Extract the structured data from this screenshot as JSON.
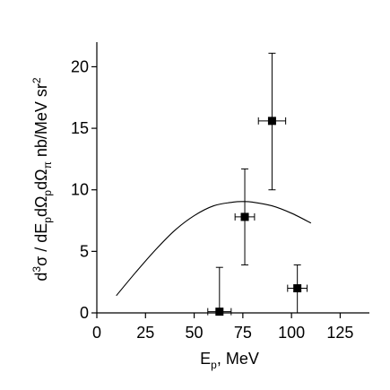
{
  "chart_data": {
    "type": "scatter",
    "title": "",
    "xlabel": {
      "main": "E",
      "sub": "p",
      "tail": ", MeV"
    },
    "ylabel": {
      "segments": [
        {
          "t": "d",
          "k": "n"
        },
        {
          "t": "3",
          "k": "sup"
        },
        {
          "t": "σ / dE",
          "k": "n"
        },
        {
          "t": "p",
          "k": "sub"
        },
        {
          "t": "dΩ",
          "k": "n"
        },
        {
          "t": "p",
          "k": "sub"
        },
        {
          "t": "dΩ",
          "k": "n"
        },
        {
          "t": "π",
          "k": "sub"
        },
        {
          "t": " nb/MeV sr",
          "k": "n"
        },
        {
          "t": "2",
          "k": "sup"
        }
      ]
    },
    "xlim": [
      0,
      140
    ],
    "ylim": [
      0,
      22
    ],
    "xticks": [
      0,
      25,
      50,
      75,
      100,
      125
    ],
    "xtick_labels": [
      "0",
      "25",
      "50",
      "75",
      "100",
      "125"
    ],
    "yticks": [
      0,
      5,
      10,
      15,
      20
    ],
    "ytick_labels": [
      "0",
      "5",
      "10",
      "15",
      "20"
    ],
    "grid": false,
    "points": [
      {
        "x": 63,
        "y": 0.1,
        "xerr": 6,
        "yerr_low": 0.1,
        "yerr_high": 3.6
      },
      {
        "x": 76,
        "y": 7.8,
        "xerr": 5,
        "yerr_low": 3.9,
        "yerr_high": 3.9
      },
      {
        "x": 90,
        "y": 15.6,
        "xerr": 7,
        "yerr_low": 5.6,
        "yerr_high": 5.5
      },
      {
        "x": 103,
        "y": 2.0,
        "xerr": 5,
        "yerr_low": 2.0,
        "yerr_high": 1.9
      }
    ],
    "curve": {
      "x": [
        10,
        20,
        30,
        40,
        50,
        60,
        70,
        75,
        80,
        90,
        100,
        110
      ],
      "y": [
        1.4,
        3.3,
        5.1,
        6.7,
        7.9,
        8.7,
        9.0,
        9.05,
        9.0,
        8.7,
        8.1,
        7.3
      ]
    }
  }
}
